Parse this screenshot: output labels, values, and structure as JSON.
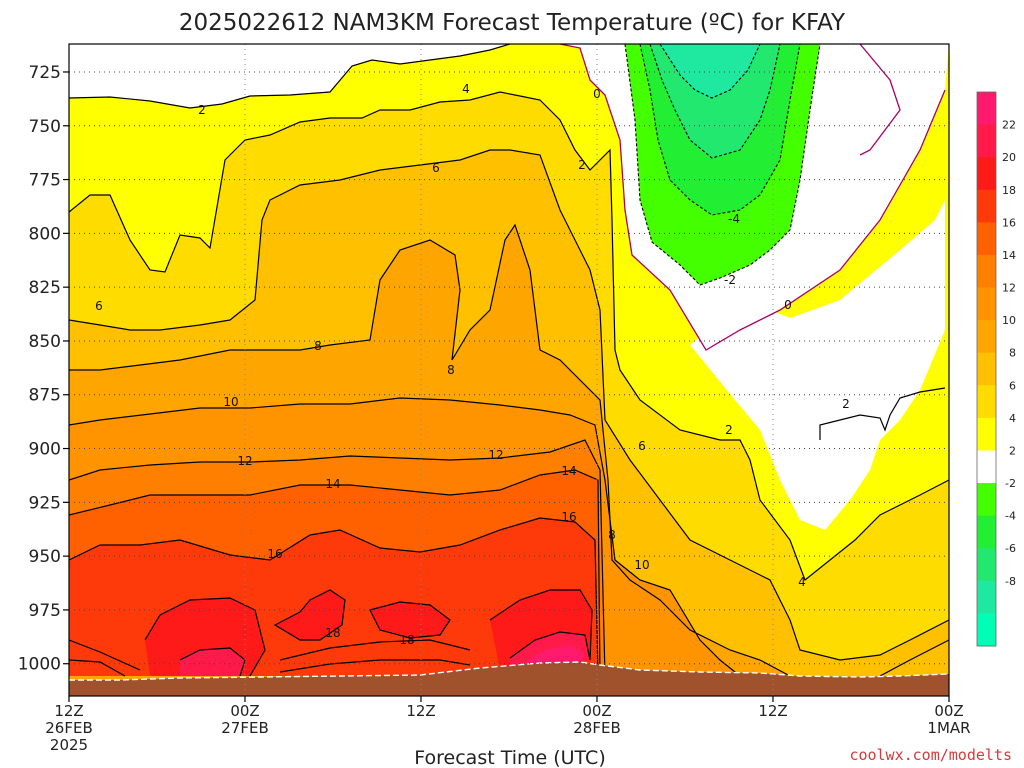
{
  "chart_data": {
    "type": "contour",
    "title": "2025022612 NAM3KM Forecast Temperature (ºC) for KFAY",
    "xlabel": "Forecast Time (UTC)",
    "ylabel": "",
    "credit": "coolwx.com/modelts",
    "x_ticks": [
      {
        "line1": "12Z",
        "line2": "26FEB",
        "line3": "2025"
      },
      {
        "line1": "00Z",
        "line2": "27FEB",
        "line3": ""
      },
      {
        "line1": "12Z",
        "line2": "",
        "line3": ""
      },
      {
        "line1": "00Z",
        "line2": "28FEB",
        "line3": ""
      },
      {
        "line1": "12Z",
        "line2": "",
        "line3": ""
      },
      {
        "line1": "00Z",
        "line2": "1MAR",
        "line3": ""
      }
    ],
    "y_ticks": [
      725,
      750,
      775,
      800,
      825,
      850,
      875,
      900,
      925,
      950,
      975,
      1000
    ],
    "y_axis": "pressure (hPa), inverted",
    "xlim_hours": [
      0,
      60
    ],
    "ylim": [
      712,
      1015
    ],
    "grid": true,
    "colorbar": {
      "labels": [
        "22",
        "20",
        "18",
        "16",
        "14",
        "12",
        "10",
        "8",
        "6",
        "4",
        "2",
        "-2",
        "-4",
        "-6",
        "-8"
      ],
      "bins": [
        {
          "color": "#ff1a6e"
        },
        {
          "color": "#ff1a4a"
        },
        {
          "color": "#ff1a1a"
        },
        {
          "color": "#ff3a0a"
        },
        {
          "color": "#ff6000"
        },
        {
          "color": "#ff8000"
        },
        {
          "color": "#ff9400"
        },
        {
          "color": "#ffa500"
        },
        {
          "color": "#ffc000"
        },
        {
          "color": "#ffdc00"
        },
        {
          "color": "#ffff00"
        },
        {
          "color": "#ffffff"
        },
        {
          "color": "#44ff00"
        },
        {
          "color": "#22ee33"
        },
        {
          "color": "#22e870"
        },
        {
          "color": "#1fe8a0"
        },
        {
          "color": "#00ffb4"
        }
      ]
    },
    "contour_labels": [
      "2",
      "4",
      "6",
      "6",
      "8",
      "8",
      "10",
      "12",
      "12",
      "14",
      "14",
      "16",
      "16",
      "18",
      "18",
      "0",
      "0",
      "2",
      "2",
      "2",
      "-2",
      "-4",
      "6",
      "8",
      "10",
      "4"
    ]
  }
}
